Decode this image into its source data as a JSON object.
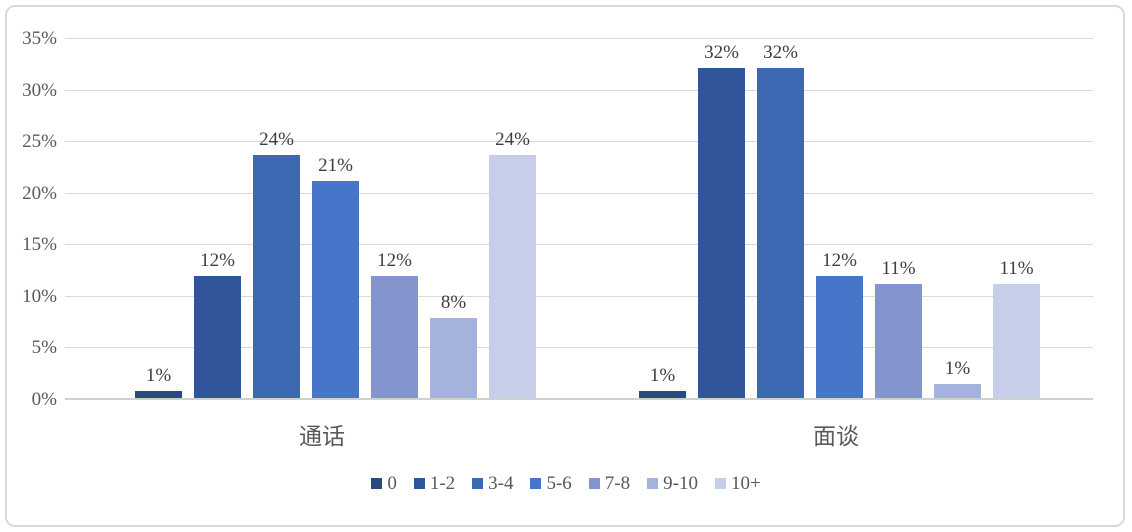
{
  "chart": {
    "background_color": "#FFFFFF",
    "frame_border_color": "#D9D9D9",
    "gridline_color": "#D9D9D9",
    "axis_line_color": "#D0D0D0",
    "tick_label_color": "#595959",
    "data_label_color": "#3D3D3D",
    "category_label_color": "#595959",
    "legend_text_color": "#595959"
  },
  "chart_data": {
    "type": "bar",
    "title": "",
    "xlabel": "",
    "ylabel": "",
    "categories": [
      "通话",
      "面谈"
    ],
    "series": [
      {
        "name": "0",
        "color": "#2A4A7F",
        "values": [
          1,
          1
        ],
        "display_values": [
          0.7,
          0.7
        ],
        "labels": [
          "1%",
          "1%"
        ]
      },
      {
        "name": "1-2",
        "color": "#30559B",
        "values": [
          12,
          32
        ],
        "display_values": [
          11.8,
          32.0
        ],
        "labels": [
          "12%",
          "32%"
        ]
      },
      {
        "name": "3-4",
        "color": "#3D69B3",
        "values": [
          24,
          32
        ],
        "display_values": [
          23.6,
          32.0
        ],
        "labels": [
          "24%",
          "32%"
        ]
      },
      {
        "name": "5-6",
        "color": "#4775C9",
        "values": [
          21,
          12
        ],
        "display_values": [
          21.0,
          11.8
        ],
        "labels": [
          "21%",
          "12%"
        ]
      },
      {
        "name": "7-8",
        "color": "#8494CF",
        "values": [
          12,
          11
        ],
        "display_values": [
          11.8,
          11.1
        ],
        "labels": [
          "12%",
          "11%"
        ]
      },
      {
        "name": "9-10",
        "color": "#A5B2DC",
        "values": [
          8,
          1
        ],
        "display_values": [
          7.8,
          1.4
        ],
        "labels": [
          "8%",
          "1%"
        ]
      },
      {
        "name": "10+",
        "color": "#C6CEE9",
        "values": [
          24,
          11
        ],
        "display_values": [
          23.6,
          11.1
        ],
        "labels": [
          "24%",
          "11%"
        ]
      }
    ],
    "ylim": [
      0,
      35
    ],
    "ytick_step": 5,
    "ytick_labels": [
      "0%",
      "5%",
      "10%",
      "15%",
      "20%",
      "25%",
      "30%",
      "35%"
    ],
    "grid": true,
    "legend_position": "bottom",
    "legend_entries": [
      "0",
      "1-2",
      "3-4",
      "5-6",
      "7-8",
      "9-10",
      "10+"
    ]
  }
}
